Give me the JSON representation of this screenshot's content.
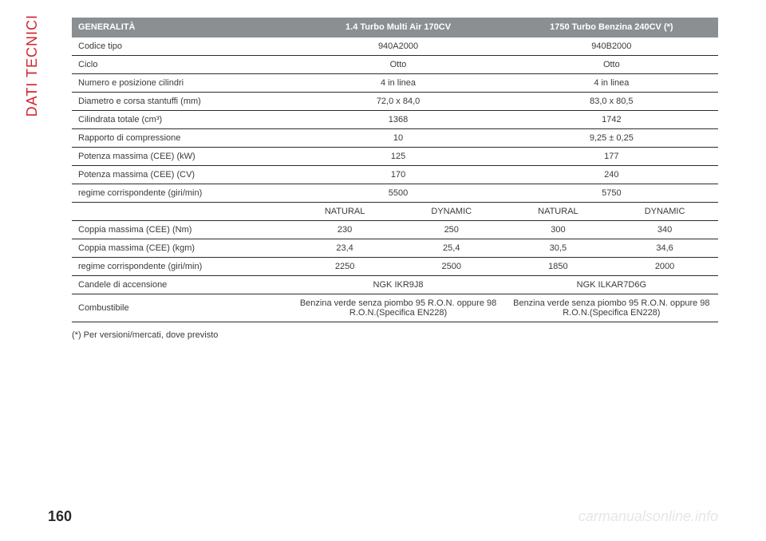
{
  "page": {
    "vertical_label": "DATI TECNICI",
    "number": "160",
    "watermark": "carmanualsonline.info",
    "footnote": "(*) Per versioni/mercati, dove previsto"
  },
  "table": {
    "headers": {
      "c0": "GENERALITÀ",
      "c1": "1.4 Turbo Multi Air 170CV",
      "c2": "1750 Turbo Benzina 240CV (*)"
    },
    "rows": [
      {
        "label": "Codice tipo",
        "a": "940A2000",
        "b": "940B2000"
      },
      {
        "label": "Ciclo",
        "a": "Otto",
        "b": "Otto"
      },
      {
        "label": "Numero e posizione cilindri",
        "a": "4 in linea",
        "b": "4 in linea"
      },
      {
        "label": "Diametro e corsa stantuffi (mm)",
        "a": "72,0 x 84,0",
        "b": "83,0 x 80,5"
      },
      {
        "label": "Cilindrata totale (cm³)",
        "a": "1368",
        "b": "1742"
      },
      {
        "label": "Rapporto di compressione",
        "a": "10",
        "b": "9,25 ± 0,25"
      },
      {
        "label": "Potenza massima (CEE) (kW)",
        "a": "125",
        "b": "177"
      },
      {
        "label": "Potenza massima (CEE) (CV)",
        "a": "170",
        "b": "240"
      },
      {
        "label": "regime corrispondente (giri/min)",
        "a": "5500",
        "b": "5750"
      }
    ],
    "sub_headers": {
      "a1": "NATURAL",
      "a2": "DYNAMIC",
      "b1": "NATURAL",
      "b2": "DYNAMIC"
    },
    "rows4": [
      {
        "label": "Coppia massima (CEE) (Nm)",
        "a1": "230",
        "a2": "250",
        "b1": "300",
        "b2": "340"
      },
      {
        "label": "Coppia massima (CEE) (kgm)",
        "a1": "23,4",
        "a2": "25,4",
        "b1": "30,5",
        "b2": "34,6"
      },
      {
        "label": "regime corrispondente (giri/min)",
        "a1": "2250",
        "a2": "2500",
        "b1": "1850",
        "b2": "2000"
      }
    ],
    "rows_bottom": [
      {
        "label": "Candele di accensione",
        "a": "NGK IKR9J8",
        "b": "NGK ILKAR7D6G"
      },
      {
        "label": "Combustibile",
        "a": "Benzina verde senza piombo 95 R.O.N. oppure 98 R.O.N.(Specifica EN228)",
        "b": "Benzina verde senza piombo 95 R.O.N. oppure 98 R.O.N.(Specifica EN228)"
      }
    ]
  },
  "style": {
    "header_bg": "#8b8f92",
    "header_fg": "#ffffff",
    "accent": "#d1252c",
    "rule": "#2b2b2b",
    "text": "#3a3a3a",
    "watermark": "#e6e6e6",
    "font_row": 11,
    "font_header": 11,
    "font_vlabel": 18,
    "font_page": 18
  }
}
